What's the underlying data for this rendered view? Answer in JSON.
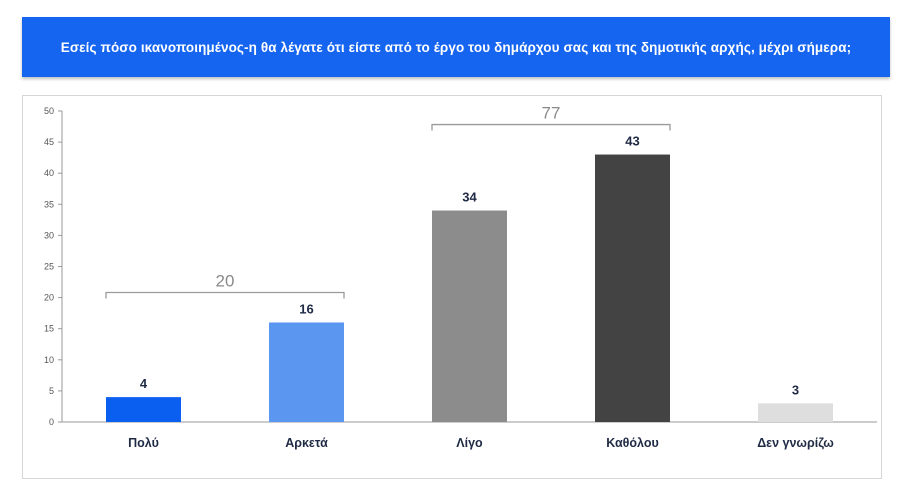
{
  "header": {
    "title": "Εσείς πόσο ικανοποιημένος-η θα λέγατε ότι είστε από το έργο του δημάρχου σας και της δημοτικής αρχής, μέχρι σήμερα;",
    "background": "#1565f0"
  },
  "chart_data": {
    "type": "bar",
    "categories": [
      "Πολύ",
      "Αρκετά",
      "Λίγο",
      "Καθόλου",
      "Δεν γνωρίζω"
    ],
    "values": [
      4,
      16,
      34,
      43,
      3
    ],
    "colors": [
      "#0a5ef0",
      "#5b97f0",
      "#8c8c8c",
      "#434343",
      "#dedede"
    ],
    "ylim": [
      0,
      50
    ],
    "yticks": [
      "0",
      "5",
      "10",
      "15",
      "20",
      "25",
      "30",
      "35",
      "40",
      "45",
      "50"
    ],
    "grid": false,
    "groups": [
      {
        "label": "20",
        "from": 0,
        "to": 1
      },
      {
        "label": "77",
        "from": 2,
        "to": 3
      }
    ]
  }
}
